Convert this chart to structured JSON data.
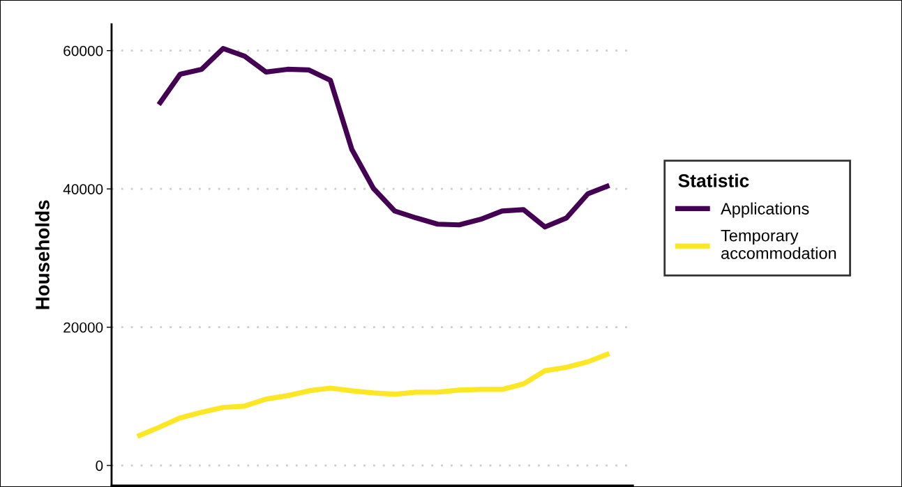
{
  "chart_data": {
    "type": "line",
    "ylabel": "Households",
    "legend_title": "Statistic",
    "legend": "right",
    "grid": "y",
    "line_style": "solid",
    "marker": "none",
    "categories": [
      null,
      null,
      null,
      null,
      null,
      null,
      null,
      null,
      null,
      null,
      null,
      null,
      null,
      null,
      null,
      null,
      null,
      null,
      null,
      null,
      null,
      null,
      null
    ],
    "ylim": [
      -2900,
      63800
    ],
    "yticks": [
      0,
      20000,
      40000,
      60000
    ],
    "series": [
      {
        "name": "Applications",
        "color": "#440154",
        "values": [
          null,
          52200,
          56600,
          57300,
          60300,
          59200,
          56900,
          57300,
          57200,
          55700,
          45700,
          40100,
          36800,
          35800,
          34900,
          34800,
          35600,
          36800,
          37000,
          34500,
          35800,
          39300,
          40500
        ]
      },
      {
        "name": "Temporary\naccommodation",
        "color": "#fde725",
        "values": [
          4200,
          5500,
          6900,
          7700,
          8400,
          8600,
          9600,
          10100,
          10800,
          11200,
          10800,
          10500,
          10300,
          10600,
          10600,
          10900,
          11000,
          11000,
          11800,
          13700,
          14200,
          15000,
          16200
        ]
      }
    ]
  }
}
